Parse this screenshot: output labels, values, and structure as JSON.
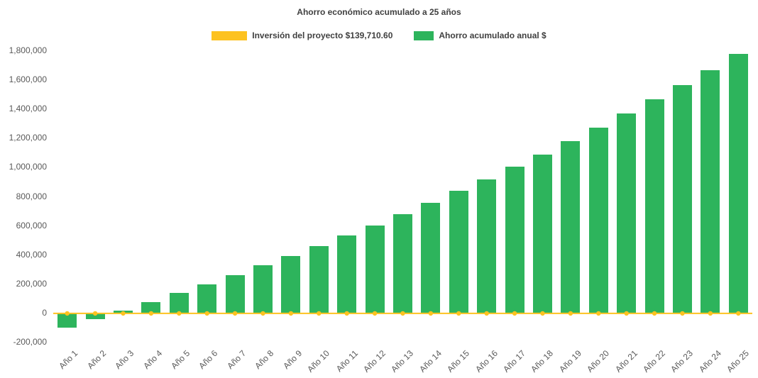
{
  "chart_data": {
    "type": "bar",
    "title": "Ahorro económico acumulado a 25 años",
    "categories": [
      "Año 1",
      "Año 2",
      "Año 3",
      "Año 4",
      "Año 5",
      "Año 6",
      "Año 7",
      "Año 8",
      "Año 9",
      "Año 10",
      "Año 11",
      "Año 12",
      "Año 13",
      "Año 14",
      "Año 15",
      "Año 16",
      "Año 17",
      "Año 18",
      "Año 19",
      "Año 20",
      "Año 21",
      "Año 22",
      "Año 23",
      "Año 24",
      "Año 25"
    ],
    "series": [
      {
        "name": "Inversión del proyecto $139,710.60",
        "type": "line",
        "color": "#fdc220",
        "values": [
          0,
          0,
          0,
          0,
          0,
          0,
          0,
          0,
          0,
          0,
          0,
          0,
          0,
          0,
          0,
          0,
          0,
          0,
          0,
          0,
          0,
          0,
          0,
          0,
          0
        ]
      },
      {
        "name": "Ahorro acumulado anual $",
        "type": "bar",
        "color": "#2db45c",
        "values": [
          -100000,
          -40000,
          18000,
          75000,
          140000,
          200000,
          263000,
          328000,
          395000,
          463000,
          533000,
          605000,
          682000,
          760000,
          840000,
          918000,
          1005000,
          1090000,
          1182000,
          1275000,
          1370000,
          1468000,
          1568000,
          1670000,
          1780000
        ]
      }
    ],
    "ylim": [
      -200000,
      1800000
    ],
    "ytick_step": 200000,
    "yticks": [
      {
        "value": 1800000,
        "label": "1,800,000"
      },
      {
        "value": 1600000,
        "label": "1,600,000"
      },
      {
        "value": 1400000,
        "label": "1,400,000"
      },
      {
        "value": 1200000,
        "label": "1,200,000"
      },
      {
        "value": 1000000,
        "label": "1,000,000"
      },
      {
        "value": 800000,
        "label": "800,000"
      },
      {
        "value": 600000,
        "label": "600,000"
      },
      {
        "value": 400000,
        "label": "400,000"
      },
      {
        "value": 200000,
        "label": "200,000"
      },
      {
        "value": 0,
        "label": "0"
      },
      {
        "value": -200000,
        "label": "-200,000"
      }
    ],
    "legend_position": "top",
    "grid": false,
    "xlabel_rotation_deg": -45
  }
}
